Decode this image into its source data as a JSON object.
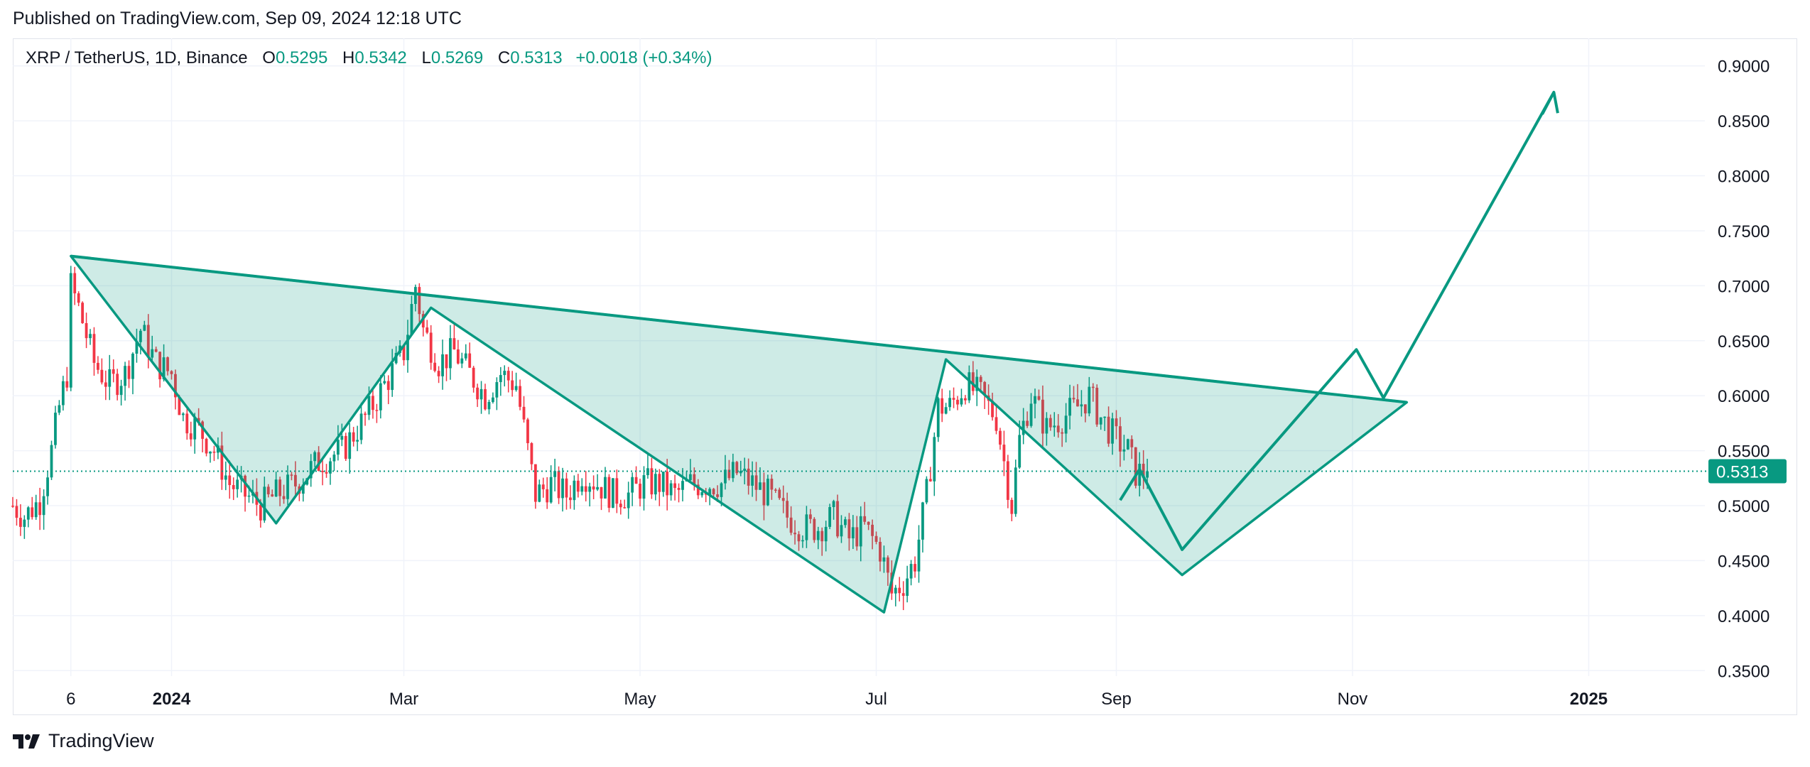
{
  "header": {
    "published": "Published on TradingView.com, Sep 09, 2024 12:18 UTC"
  },
  "legend": {
    "symbol": "XRP / TetherUS, 1D, Binance",
    "o_label": "O",
    "o": "0.5295",
    "h_label": "H",
    "h": "0.5342",
    "l_label": "L",
    "l": "0.5269",
    "c_label": "C",
    "c": "0.5313",
    "change": "+0.0018 (+0.34%)"
  },
  "footer": {
    "brand": "TradingView"
  },
  "colors": {
    "up": "#089981",
    "down": "#f23645",
    "drawing": "#089981",
    "fill": "rgba(8,153,129,0.2)",
    "grid": "#f0f3fa",
    "axis_text": "#131722"
  },
  "chart_data": {
    "type": "candlestick",
    "symbol": "XRP / TetherUS",
    "interval": "1D",
    "exchange": "Binance",
    "x_range": [
      "2023-11-21",
      "2025-01-31"
    ],
    "y_range": [
      0.345,
      0.925
    ],
    "grid": true,
    "y_ticks": [
      "0.9000",
      "0.8500",
      "0.8000",
      "0.7500",
      "0.7000",
      "0.6500",
      "0.6000",
      "0.5500",
      "0.5000",
      "0.4500",
      "0.4000",
      "0.3500"
    ],
    "x_ticks": [
      {
        "label": "6",
        "date": "2023-12-06",
        "bold": false
      },
      {
        "label": "2024",
        "date": "2024-01-01",
        "bold": true
      },
      {
        "label": "Mar",
        "date": "2024-03-01",
        "bold": false
      },
      {
        "label": "May",
        "date": "2024-05-01",
        "bold": false
      },
      {
        "label": "Jul",
        "date": "2024-07-01",
        "bold": false
      },
      {
        "label": "Sep",
        "date": "2024-09-01",
        "bold": false
      },
      {
        "label": "Nov",
        "date": "2024-11-01",
        "bold": false
      },
      {
        "label": "2025",
        "date": "2025-01-01",
        "bold": true
      }
    ],
    "last_price": 0.5313,
    "last_price_label": "0.5313",
    "price_path": [
      [
        "2023-11-21",
        0.5
      ],
      [
        "2023-11-24",
        0.49
      ],
      [
        "2023-11-28",
        0.505
      ],
      [
        "2023-12-01",
        0.55
      ],
      [
        "2023-12-03",
        0.59
      ],
      [
        "2023-12-05",
        0.62
      ],
      [
        "2023-12-06",
        0.7
      ],
      [
        "2023-12-08",
        0.68
      ],
      [
        "2023-12-12",
        0.63
      ],
      [
        "2023-12-16",
        0.61
      ],
      [
        "2023-12-20",
        0.62
      ],
      [
        "2023-12-24",
        0.66
      ],
      [
        "2023-12-28",
        0.63
      ],
      [
        "2024-01-01",
        0.62
      ],
      [
        "2024-01-04",
        0.58
      ],
      [
        "2024-01-08",
        0.57
      ],
      [
        "2024-01-12",
        0.55
      ],
      [
        "2024-01-16",
        0.52
      ],
      [
        "2024-01-20",
        0.51
      ],
      [
        "2024-01-24",
        0.5
      ],
      [
        "2024-01-28",
        0.51
      ],
      [
        "2024-02-02",
        0.52
      ],
      [
        "2024-02-08",
        0.54
      ],
      [
        "2024-02-14",
        0.55
      ],
      [
        "2024-02-20",
        0.58
      ],
      [
        "2024-02-25",
        0.61
      ],
      [
        "2024-03-01",
        0.64
      ],
      [
        "2024-03-04",
        0.7
      ],
      [
        "2024-03-06",
        0.66
      ],
      [
        "2024-03-10",
        0.63
      ],
      [
        "2024-03-14",
        0.64
      ],
      [
        "2024-03-18",
        0.62
      ],
      [
        "2024-03-22",
        0.6
      ],
      [
        "2024-03-26",
        0.62
      ],
      [
        "2024-03-30",
        0.61
      ],
      [
        "2024-04-01",
        0.57
      ],
      [
        "2024-04-04",
        0.51
      ],
      [
        "2024-04-08",
        0.52
      ],
      [
        "2024-04-12",
        0.51
      ],
      [
        "2024-04-16",
        0.53
      ],
      [
        "2024-04-20",
        0.52
      ],
      [
        "2024-04-24",
        0.51
      ],
      [
        "2024-04-28",
        0.51
      ],
      [
        "2024-05-02",
        0.52
      ],
      [
        "2024-05-06",
        0.52
      ],
      [
        "2024-05-10",
        0.51
      ],
      [
        "2024-05-14",
        0.52
      ],
      [
        "2024-05-18",
        0.52
      ],
      [
        "2024-05-22",
        0.52
      ],
      [
        "2024-05-26",
        0.53
      ],
      [
        "2024-05-30",
        0.52
      ],
      [
        "2024-06-03",
        0.51
      ],
      [
        "2024-06-08",
        0.49
      ],
      [
        "2024-06-12",
        0.48
      ],
      [
        "2024-06-16",
        0.48
      ],
      [
        "2024-06-20",
        0.49
      ],
      [
        "2024-06-24",
        0.47
      ],
      [
        "2024-06-28",
        0.48
      ],
      [
        "2024-07-02",
        0.46
      ],
      [
        "2024-07-05",
        0.42
      ],
      [
        "2024-07-08",
        0.43
      ],
      [
        "2024-07-11",
        0.45
      ],
      [
        "2024-07-14",
        0.51
      ],
      [
        "2024-07-17",
        0.59
      ],
      [
        "2024-07-20",
        0.59
      ],
      [
        "2024-07-24",
        0.61
      ],
      [
        "2024-07-28",
        0.6
      ],
      [
        "2024-08-01",
        0.58
      ],
      [
        "2024-08-05",
        0.5
      ],
      [
        "2024-08-07",
        0.56
      ],
      [
        "2024-08-10",
        0.6
      ],
      [
        "2024-08-14",
        0.57
      ],
      [
        "2024-08-18",
        0.58
      ],
      [
        "2024-08-22",
        0.59
      ],
      [
        "2024-08-25",
        0.6
      ],
      [
        "2024-08-28",
        0.58
      ],
      [
        "2024-09-01",
        0.56
      ],
      [
        "2024-09-04",
        0.55
      ],
      [
        "2024-09-06",
        0.53
      ],
      [
        "2024-09-08",
        0.53
      ],
      [
        "2024-09-09",
        0.5313
      ]
    ],
    "drawings": {
      "neckline": [
        [
          "2023-12-06",
          0.727
        ],
        [
          "2024-11-15",
          0.594
        ]
      ],
      "pattern_fill": [
        [
          "2023-12-06",
          0.727
        ],
        [
          "2024-01-28",
          0.484
        ],
        [
          "2024-03-08",
          0.68
        ],
        [
          "2024-07-03",
          0.403
        ],
        [
          "2024-07-19",
          0.633
        ],
        [
          "2024-09-18",
          0.437
        ],
        [
          "2024-11-15",
          0.594
        ]
      ],
      "projection_path": [
        [
          "2024-09-02",
          0.505
        ],
        [
          "2024-09-07",
          0.533
        ],
        [
          "2024-09-18",
          0.46
        ],
        [
          "2024-11-02",
          0.642
        ],
        [
          "2024-11-09",
          0.598
        ],
        [
          "2024-12-23",
          0.876
        ]
      ],
      "arrow_head": [
        [
          "2024-12-20",
          0.856
        ],
        [
          "2024-12-23",
          0.876
        ],
        [
          "2024-12-24",
          0.857
        ]
      ]
    }
  }
}
